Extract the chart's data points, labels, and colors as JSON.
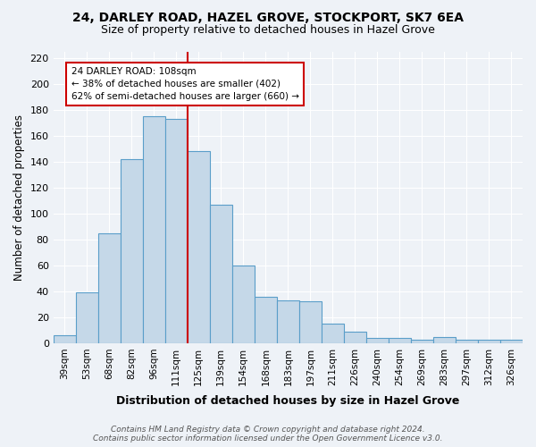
{
  "title": "24, DARLEY ROAD, HAZEL GROVE, STOCKPORT, SK7 6EA",
  "subtitle": "Size of property relative to detached houses in Hazel Grove",
  "xlabel": "Distribution of detached houses by size in Hazel Grove",
  "ylabel": "Number of detached properties",
  "footer_line1": "Contains HM Land Registry data © Crown copyright and database right 2024.",
  "footer_line2": "Contains public sector information licensed under the Open Government Licence v3.0.",
  "categories": [
    "39sqm",
    "53sqm",
    "68sqm",
    "82sqm",
    "96sqm",
    "111sqm",
    "125sqm",
    "139sqm",
    "154sqm",
    "168sqm",
    "183sqm",
    "197sqm",
    "211sqm",
    "226sqm",
    "240sqm",
    "254sqm",
    "269sqm",
    "283sqm",
    "297sqm",
    "312sqm",
    "326sqm"
  ],
  "values": [
    6,
    39,
    85,
    142,
    175,
    173,
    148,
    107,
    60,
    36,
    33,
    32,
    15,
    9,
    4,
    4,
    3,
    5,
    3,
    3,
    3
  ],
  "bar_color": "#c5d8e8",
  "bar_edge_color": "#5a9ec9",
  "vline_x": 5.5,
  "vline_color": "#cc0000",
  "annotation_title": "24 DARLEY ROAD: 108sqm",
  "annotation_line1": "← 38% of detached houses are smaller (402)",
  "annotation_line2": "62% of semi-detached houses are larger (660) →",
  "annotation_box_color": "#cc0000",
  "ylim": [
    0,
    225
  ],
  "yticks": [
    0,
    20,
    40,
    60,
    80,
    100,
    120,
    140,
    160,
    180,
    200,
    220
  ],
  "background_color": "#eef2f7",
  "plot_bg_color": "#eef2f7"
}
